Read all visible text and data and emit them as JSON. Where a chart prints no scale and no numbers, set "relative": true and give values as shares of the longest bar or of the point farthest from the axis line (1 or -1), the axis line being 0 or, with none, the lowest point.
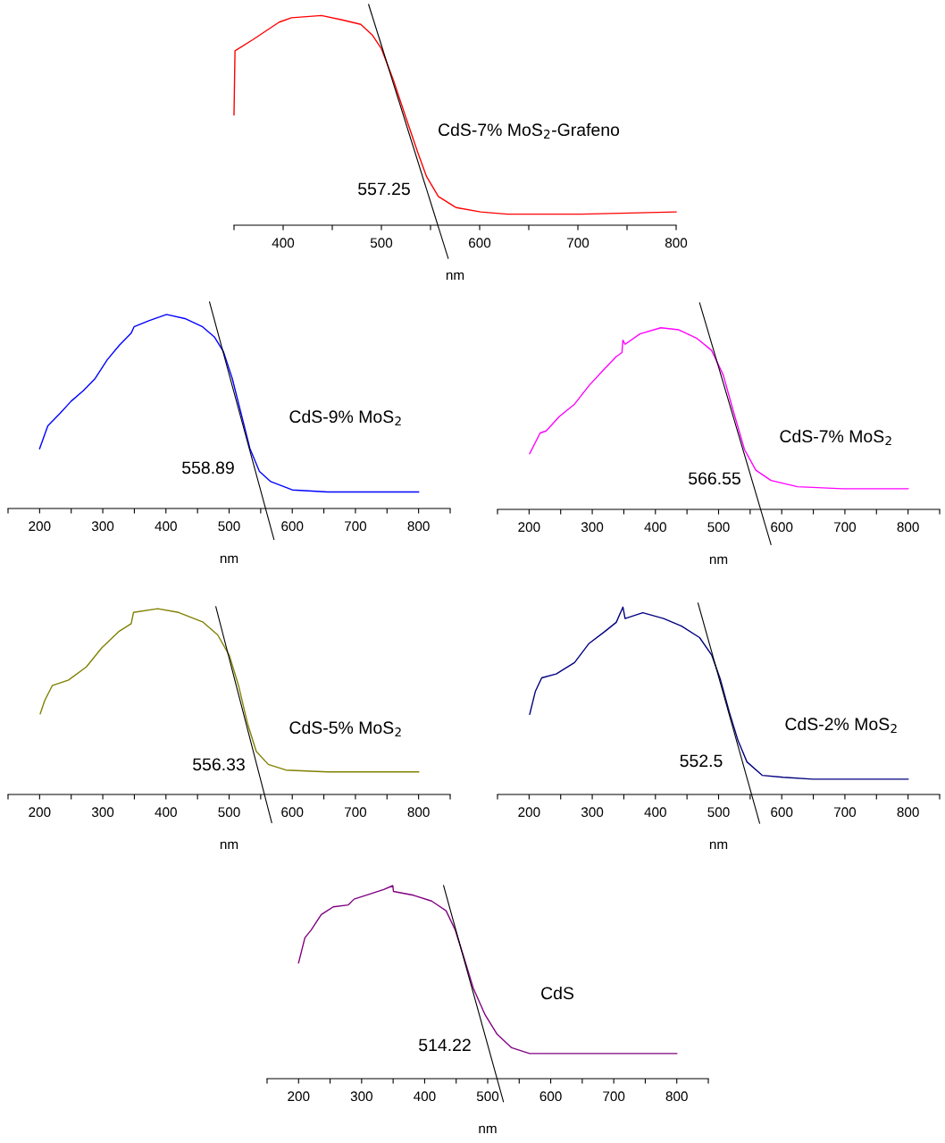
{
  "chart_data": [
    {
      "type": "line",
      "relative": true,
      "xlabel": "nm",
      "tick_labels": "x",
      "xlim": [
        350,
        800
      ],
      "xticks": [
        {
          "value": 350,
          "label": null
        },
        400,
        {
          "value": 450,
          "label": null
        },
        500,
        {
          "value": 550,
          "label": null
        },
        600,
        {
          "value": 650,
          "label": null
        },
        700,
        {
          "value": 750,
          "label": null
        },
        800
      ],
      "annotations": [
        "557.25"
      ],
      "series": [
        {
          "name": "CdS-7% MoS$_{2}$-Grafeno",
          "color": "#ff0000",
          "x": [
            350,
            351,
            369,
            396,
            408.5,
            439,
            460,
            479,
            491,
            500,
            512,
            524,
            537,
            546,
            558,
            576,
            601,
            628,
            704,
            800
          ],
          "values": [
            0.5,
            0.79,
            0.84,
            0.92,
            0.94,
            0.95,
            0.93,
            0.91,
            0.86,
            0.8,
            0.66,
            0.5,
            0.33,
            0.22,
            0.13,
            0.08,
            0.06,
            0.05,
            0.05,
            0.06
          ]
        },
        {
          "type": "line",
          "color": "#000000",
          "x": [
            487,
            568
          ],
          "values": [
            1,
            -0.15
          ]
        }
      ]
    },
    {
      "type": "line",
      "relative": true,
      "xlabel": "nm",
      "tick_labels": "x",
      "xlim": [
        150,
        850
      ],
      "xticks": [
        {
          "value": 150,
          "label": null
        },
        200,
        {
          "value": 250,
          "label": null
        },
        300,
        {
          "value": 350,
          "label": null
        },
        400,
        {
          "value": 450,
          "label": null
        },
        500,
        {
          "value": 550,
          "label": null
        },
        600,
        {
          "value": 650,
          "label": null
        },
        700,
        {
          "value": 750,
          "label": null
        },
        800,
        {
          "value": 850,
          "label": null
        }
      ],
      "annotations": [
        "558.89"
      ],
      "series": [
        {
          "name": "CdS-9% MoS$_{2}$",
          "color": "#0000ff",
          "x": [
            200,
            213,
            232,
            250,
            269,
            288,
            307,
            326,
            345,
            349.5,
            373,
            401,
            430,
            458,
            477,
            491,
            505,
            519,
            533,
            548,
            566,
            600,
            656,
            800
          ],
          "values": [
            0.29,
            0.4,
            0.46,
            0.52,
            0.57,
            0.63,
            0.72,
            0.79,
            0.85,
            0.88,
            0.91,
            0.94,
            0.92,
            0.88,
            0.83,
            0.76,
            0.63,
            0.46,
            0.29,
            0.18,
            0.13,
            0.09,
            0.08,
            0.08
          ]
        },
        {
          "type": "line",
          "color": "#000000",
          "x": [
            469,
            571
          ],
          "values": [
            1,
            -0.15
          ]
        }
      ]
    },
    {
      "type": "line",
      "relative": true,
      "xlabel": "nm",
      "tick_labels": "x",
      "xlim": [
        150,
        850
      ],
      "xticks": [
        {
          "value": 150,
          "label": null
        },
        200,
        {
          "value": 250,
          "label": null
        },
        300,
        {
          "value": 350,
          "label": null
        },
        400,
        {
          "value": 450,
          "label": null
        },
        500,
        {
          "value": 550,
          "label": null
        },
        600,
        {
          "value": 650,
          "label": null
        },
        700,
        {
          "value": 750,
          "label": null
        },
        800,
        {
          "value": 850,
          "label": null
        }
      ],
      "annotations": [
        "566.55"
      ],
      "series": [
        {
          "name": "CdS-7% MoS$_{2}$",
          "color": "#ff00ff",
          "x": [
            201,
            217.5,
            227,
            248,
            272,
            295,
            319,
            338,
            347,
            348.6,
            352,
            375.5,
            408.5,
            437,
            465,
            489,
            507.5,
            522,
            541,
            559,
            583,
            625,
            696,
            800
          ],
          "values": [
            0.27,
            0.37,
            0.38,
            0.45,
            0.51,
            0.6,
            0.68,
            0.74,
            0.76,
            0.82,
            0.8,
            0.85,
            0.88,
            0.87,
            0.83,
            0.77,
            0.65,
            0.49,
            0.29,
            0.19,
            0.14,
            0.11,
            0.1,
            0.1
          ]
        },
        {
          "type": "line",
          "color": "#000000",
          "x": [
            470,
            583
          ],
          "values": [
            1,
            -0.17
          ]
        }
      ]
    },
    {
      "type": "line",
      "relative": true,
      "xlabel": "nm",
      "tick_labels": "x",
      "xlim": [
        150,
        850
      ],
      "xticks": [
        {
          "value": 150,
          "label": null
        },
        200,
        {
          "value": 250,
          "label": null
        },
        300,
        {
          "value": 350,
          "label": null
        },
        400,
        {
          "value": 450,
          "label": null
        },
        500,
        {
          "value": 550,
          "label": null
        },
        600,
        {
          "value": 650,
          "label": null
        },
        700,
        {
          "value": 750,
          "label": null
        },
        800,
        {
          "value": 850,
          "label": null
        }
      ],
      "annotations": [
        "556.33"
      ],
      "series": [
        {
          "name": "CdS-5% MoS$_{2}$",
          "color": "#808000",
          "x": [
            201,
            208,
            220,
            246,
            274,
            298,
            326,
            345,
            348.6,
            387,
            420,
            458,
            482,
            500.5,
            515,
            529,
            543,
            562,
            590,
            656,
            800
          ],
          "values": [
            0.43,
            0.5,
            0.58,
            0.61,
            0.68,
            0.78,
            0.87,
            0.91,
            0.97,
            0.99,
            0.97,
            0.92,
            0.85,
            0.74,
            0.58,
            0.38,
            0.23,
            0.16,
            0.13,
            0.12,
            0.12
          ]
        },
        {
          "type": "line",
          "color": "#000000",
          "x": [
            479,
            567.5
          ],
          "values": [
            1,
            -0.15
          ]
        }
      ]
    },
    {
      "type": "line",
      "relative": true,
      "xlabel": "nm",
      "tick_labels": "x",
      "xlim": [
        150,
        850
      ],
      "xticks": [
        {
          "value": 150,
          "label": null
        },
        200,
        {
          "value": 250,
          "label": null
        },
        300,
        {
          "value": 350,
          "label": null
        },
        400,
        {
          "value": 450,
          "label": null
        },
        500,
        {
          "value": 550,
          "label": null
        },
        600,
        {
          "value": 650,
          "label": null
        },
        700,
        {
          "value": 750,
          "label": null
        },
        800,
        {
          "value": 850,
          "label": null
        }
      ],
      "annotations": [
        "552.5"
      ],
      "series": [
        {
          "name": "CdS-2% MoS$_{2}$",
          "color": "#000080",
          "x": [
            201,
            210,
            220,
            243,
            272,
            295,
            319,
            338,
            348.6,
            352,
            380,
            413,
            441.5,
            470,
            489,
            503,
            517,
            531,
            545,
            569,
            602,
            649,
            800
          ],
          "values": [
            0.42,
            0.54,
            0.61,
            0.63,
            0.69,
            0.79,
            0.85,
            0.9,
            0.98,
            0.92,
            0.95,
            0.92,
            0.88,
            0.82,
            0.73,
            0.6,
            0.43,
            0.28,
            0.17,
            0.1,
            0.09,
            0.08,
            0.08
          ]
        },
        {
          "type": "line",
          "color": "#000000",
          "x": [
            467.5,
            565
          ],
          "values": [
            1,
            -0.15
          ]
        }
      ]
    },
    {
      "type": "line",
      "relative": true,
      "xlabel": "nm",
      "tick_labels": "x",
      "xlim": [
        150,
        850
      ],
      "xticks": [
        {
          "value": 150,
          "label": null
        },
        200,
        {
          "value": 250,
          "label": null
        },
        300,
        {
          "value": 350,
          "label": null
        },
        400,
        {
          "value": 450,
          "label": null
        },
        500,
        {
          "value": 550,
          "label": null
        },
        600,
        {
          "value": 650,
          "label": null
        },
        700,
        {
          "value": 750,
          "label": null
        },
        800,
        {
          "value": 850,
          "label": null
        }
      ],
      "annotations": [
        "514.22"
      ],
      "series": [
        {
          "name": "CdS",
          "color": "#800080",
          "x": [
            200,
            210,
            220,
            236,
            255,
            279,
            288,
            316.5,
            335,
            349.5,
            350.5,
            382.5,
            411,
            434,
            448.6,
            463,
            477,
            496,
            515,
            538,
            566.5,
            609,
            800
          ],
          "values": [
            0.6,
            0.73,
            0.77,
            0.85,
            0.89,
            0.9,
            0.93,
            0.96,
            0.98,
            1.0,
            0.97,
            0.95,
            0.92,
            0.87,
            0.77,
            0.62,
            0.47,
            0.33,
            0.23,
            0.16,
            0.13,
            0.13,
            0.13
          ]
        },
        {
          "type": "line",
          "color": "#000000",
          "x": [
            430,
            525
          ],
          "values": [
            1,
            -0.12
          ]
        }
      ]
    }
  ]
}
